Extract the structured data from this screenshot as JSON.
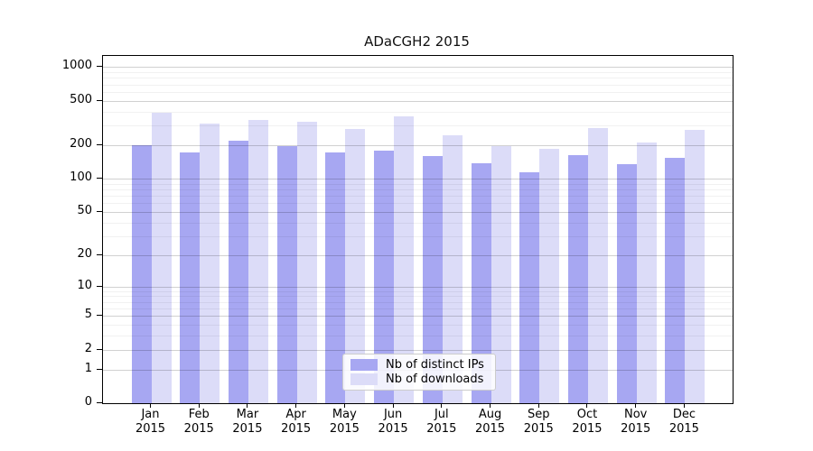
{
  "title": "ADaCGH2 2015",
  "legend": {
    "position": "lower center",
    "items": [
      "Nb of distinct IPs",
      "Nb of downloads"
    ]
  },
  "colors": {
    "distinct_ips": "#a7a7f2",
    "downloads": "#dcdcf8",
    "grid_major": "#c9c9c9",
    "grid_minor": "#ececec"
  },
  "chart_data": {
    "type": "bar",
    "title": "ADaCGH2 2015",
    "xlabel": "",
    "ylabel": "",
    "yscale": "log1p",
    "grid": true,
    "legend_position": "lower center",
    "ylim": [
      0,
      1258
    ],
    "yticks": [
      0,
      1,
      2,
      5,
      10,
      20,
      50,
      100,
      200,
      500,
      1000
    ],
    "minor_ticks": [
      3,
      4,
      6,
      7,
      8,
      9,
      30,
      40,
      60,
      70,
      80,
      90,
      300,
      400,
      600,
      700,
      800,
      900
    ],
    "categories": [
      "Jan 2015",
      "Feb 2015",
      "Mar 2015",
      "Apr 2015",
      "May 2015",
      "Jun 2015",
      "Jul 2015",
      "Aug 2015",
      "Sep 2015",
      "Oct 2015",
      "Nov 2015",
      "Dec 2015"
    ],
    "series": [
      {
        "name": "Nb of distinct IPs",
        "color": "#a7a7f2",
        "values": [
          200,
          172,
          220,
          196,
          172,
          178,
          160,
          138,
          114,
          163,
          134,
          154
        ]
      },
      {
        "name": "Nb of downloads",
        "color": "#dcdcf8",
        "values": [
          390,
          315,
          335,
          325,
          280,
          360,
          245,
          196,
          187,
          285,
          212,
          275
        ]
      }
    ]
  }
}
